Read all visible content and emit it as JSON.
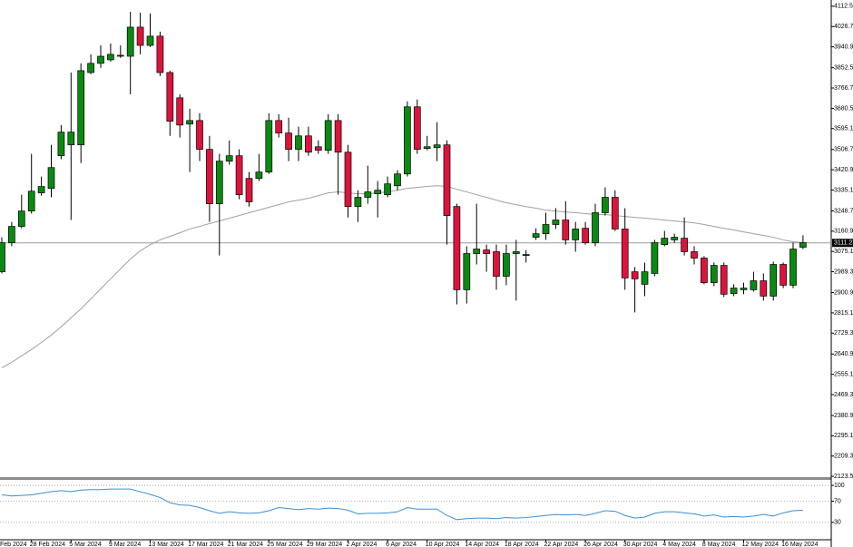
{
  "chart_data": [
    {
      "type": "candlestick",
      "x_label_partial": "Feb 2024",
      "categories": [
        null,
        null,
        null,
        "28 Feb 2024",
        null,
        null,
        null,
        "5 Mar 2024",
        null,
        null,
        null,
        "9 Mar 2024",
        null,
        null,
        null,
        "13 Mar 2024",
        null,
        null,
        null,
        "17 Mar 2024",
        null,
        null,
        null,
        "21 Mar 2024",
        null,
        null,
        null,
        "25 Mar 2024",
        null,
        null,
        null,
        "29 Mar 2024",
        null,
        null,
        null,
        "2 Apr 2024",
        null,
        null,
        null,
        "6 Apr 2024",
        null,
        null,
        null,
        "10 Apr 2024",
        null,
        null,
        null,
        "14 Apr 2024",
        null,
        null,
        null,
        "18 Apr 2024",
        null,
        null,
        null,
        "22 Apr 2024",
        null,
        null,
        null,
        "26 Apr 2024",
        null,
        null,
        null,
        "30 Apr 2024",
        null,
        null,
        null,
        "4 May 2024",
        null,
        null,
        null,
        "8 May 2024",
        null,
        null,
        null,
        "12 May 2024",
        null,
        null,
        null,
        "16 May 2024",
        null,
        null
      ],
      "open": [
        2989,
        3112,
        3181,
        3246,
        3323,
        3342,
        3480,
        3526,
        3526,
        3832,
        3871,
        3886,
        3905,
        3901,
        4024,
        3947,
        3986,
        3832,
        3725,
        3614,
        3629,
        3507,
        3277,
        3457,
        3480,
        3384,
        3384,
        3411,
        3629,
        3576,
        3507,
        3564,
        3518,
        3503,
        3629,
        3495,
        3265,
        3304,
        3319,
        3315,
        3353,
        3403,
        3687,
        3511,
        3514,
        3526,
        3265,
        2913,
        3066,
        3081,
        3074,
        2970,
        3066,
        3058,
        3135,
        3150,
        3189,
        3208,
        3124,
        3173,
        3112,
        3239,
        3304,
        3170,
        2989,
        2936,
        2982,
        3104,
        3124,
        3131,
        3074,
        3047,
        2943,
        3016,
        2897,
        2913,
        2913,
        2951,
        2886,
        3020,
        2932,
        3093
      ],
      "high": [
        3135,
        3200,
        3315,
        3488,
        3392,
        3526,
        3610,
        3832,
        3871,
        3909,
        3947,
        3955,
        3947,
        4089,
        4085,
        4082,
        4005,
        3840,
        3740,
        3679,
        3660,
        3564,
        3488,
        3545,
        3507,
        3411,
        3488,
        3660,
        3656,
        3641,
        3603,
        3603,
        3545,
        3656,
        3656,
        3526,
        3334,
        3438,
        3373,
        3392,
        3419,
        3710,
        3718,
        3564,
        3622,
        3545,
        3277,
        3097,
        3277,
        3104,
        3104,
        3104,
        3124,
        3081,
        3173,
        3239,
        3258,
        3288,
        3200,
        3200,
        3277,
        3346,
        3334,
        3258,
        3009,
        3028,
        3124,
        3162,
        3150,
        3219,
        3097,
        3055,
        3028,
        3028,
        2936,
        2943,
        2989,
        2982,
        3032,
        3028,
        3112,
        3143
      ],
      "low": [
        2982,
        3097,
        3173,
        3235,
        3311,
        3304,
        3465,
        3208,
        3449,
        3825,
        3852,
        3878,
        3894,
        3740,
        3909,
        3940,
        3817,
        3564,
        3557,
        3411,
        3457,
        3200,
        3058,
        3442,
        3296,
        3265,
        3373,
        3403,
        3557,
        3457,
        3457,
        3480,
        3488,
        3488,
        3315,
        3219,
        3200,
        3277,
        3219,
        3304,
        3334,
        3392,
        3488,
        3503,
        3457,
        3104,
        2851,
        2855,
        3020,
        2989,
        2913,
        2932,
        2867,
        3028,
        3124,
        3124,
        3170,
        3104,
        3074,
        3104,
        3097,
        3227,
        3162,
        2913,
        2817,
        2886,
        2970,
        3097,
        3112,
        3058,
        3020,
        2936,
        2928,
        2882,
        2886,
        2894,
        2905,
        2867,
        2867,
        2920,
        2920,
        3085
      ],
      "close": [
        3112,
        3181,
        3246,
        3330,
        3350,
        3430,
        3580,
        3580,
        3840,
        3871,
        3901,
        3909,
        3901,
        4024,
        3947,
        3986,
        3832,
        3626,
        3610,
        3629,
        3507,
        3277,
        3457,
        3480,
        3315,
        3285,
        3411,
        3629,
        3576,
        3507,
        3564,
        3495,
        3503,
        3629,
        3495,
        3265,
        3304,
        3327,
        3334,
        3361,
        3403,
        3687,
        3507,
        3518,
        3526,
        3227,
        2913,
        3066,
        3085,
        3066,
        2970,
        3066,
        3074,
        3062,
        3150,
        3189,
        3208,
        3124,
        3170,
        3112,
        3239,
        3304,
        3170,
        2963,
        2959,
        2989,
        3112,
        3131,
        3135,
        3074,
        3047,
        2943,
        3016,
        2894,
        2920,
        2920,
        2951,
        2886,
        3020,
        2932,
        3085,
        3112
      ],
      "up_color": "#0b8a12",
      "down_color": "#dc143c",
      "moving_average": {
        "color": "#a0a0a0",
        "values": [
          2583,
          2606,
          2633,
          2660,
          2690,
          2721,
          2756,
          2794,
          2832,
          2874,
          2917,
          2959,
          3001,
          3043,
          3078,
          3104,
          3124,
          3139,
          3154,
          3170,
          3181,
          3193,
          3204,
          3216,
          3227,
          3239,
          3250,
          3262,
          3273,
          3285,
          3292,
          3300,
          3311,
          3323,
          3327,
          3323,
          3319,
          3319,
          3323,
          3327,
          3334,
          3342,
          3346,
          3350,
          3353,
          3350,
          3338,
          3327,
          3315,
          3304,
          3292,
          3281,
          3273,
          3265,
          3258,
          3250,
          3246,
          3242,
          3239,
          3235,
          3231,
          3231,
          3227,
          3223,
          3219,
          3216,
          3212,
          3208,
          3204,
          3200,
          3196,
          3189,
          3181,
          3173,
          3166,
          3158,
          3150,
          3143,
          3135,
          3124,
          3116,
          3112
        ]
      },
      "current_price": 3111.23,
      "ylim": [
        2120,
        4139
      ],
      "yticks": [
        {
          "value": 4112.5,
          "label": "4112.50"
        },
        {
          "value": 4026.7,
          "label": "4026.70"
        },
        {
          "value": 3940.9,
          "label": "3940.90"
        },
        {
          "value": 3852.5,
          "label": "3852.50"
        },
        {
          "value": 3766.7,
          "label": "3766.70"
        },
        {
          "value": 3680.5,
          "label": "3680.50"
        },
        {
          "value": 3595.1,
          "label": "3595.10"
        },
        {
          "value": 3506.7,
          "label": "3506.70"
        },
        {
          "value": 3420.9,
          "label": "3420.90"
        },
        {
          "value": 3335.1,
          "label": "3335.10"
        },
        {
          "value": 3246.7,
          "label": "3246.70"
        },
        {
          "value": 3160.9,
          "label": "3160.90"
        },
        {
          "value": 3075.1,
          "label": "3075.10"
        },
        {
          "value": 2989.3,
          "label": "2989.30"
        },
        {
          "value": 2900.9,
          "label": "2900.90"
        },
        {
          "value": 2815.1,
          "label": "2815.10"
        },
        {
          "value": 2729.3,
          "label": "2729.30"
        },
        {
          "value": 2640.9,
          "label": "2640.90"
        },
        {
          "value": 2555.1,
          "label": "2555.10"
        },
        {
          "value": 2469.3,
          "label": "2469.30"
        },
        {
          "value": 2380.9,
          "label": "2380.90"
        },
        {
          "value": 2295.1,
          "label": "2295.10"
        },
        {
          "value": 2209.3,
          "label": "2209.30"
        },
        {
          "value": 2123.5,
          "label": "2123.50"
        }
      ]
    },
    {
      "type": "line",
      "series": [
        {
          "color": "#3b8fd4",
          "values": [
            82,
            80,
            81,
            82,
            85,
            88,
            90,
            88,
            91,
            92,
            92,
            93,
            93,
            93,
            88,
            83,
            77,
            67,
            63,
            62,
            58,
            52,
            47,
            50,
            48,
            47,
            48,
            52,
            58,
            56,
            54,
            56,
            55,
            57,
            56,
            53,
            46,
            47,
            47,
            48,
            50,
            58,
            55,
            55,
            55,
            43,
            35,
            37,
            38,
            38,
            37,
            39,
            38,
            39,
            41,
            43,
            45,
            44,
            45,
            43,
            47,
            52,
            51,
            43,
            38,
            40,
            47,
            50,
            50,
            48,
            46,
            42,
            44,
            40,
            41,
            40,
            42,
            45,
            42,
            48,
            52,
            53
          ]
        }
      ],
      "ylim": [
        -3,
        107
      ],
      "yticks": [
        100,
        70,
        30
      ],
      "grid": true
    }
  ]
}
